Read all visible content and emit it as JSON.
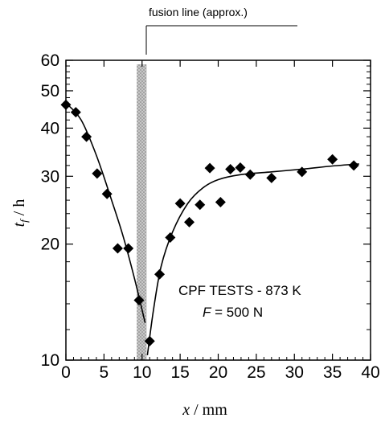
{
  "chart_data": {
    "type": "scatter",
    "title": "",
    "xlabel": {
      "var": "x",
      "unit": " / mm"
    },
    "ylabel": {
      "var": "t",
      "sub": "f",
      "unit": " / h"
    },
    "xlim": [
      0,
      40
    ],
    "ylim": [
      10,
      60
    ],
    "yscale": "log",
    "grid": false,
    "xticks": [
      0,
      5,
      10,
      15,
      20,
      25,
      30,
      35,
      40
    ],
    "xtick_labels": [
      "0",
      "5",
      "10",
      "15",
      "20",
      "25",
      "30",
      "35",
      "40"
    ],
    "yticks": [
      10,
      20,
      30,
      40,
      50,
      60
    ],
    "ytick_labels": [
      "10",
      "20",
      "30",
      "40",
      "50",
      "60"
    ],
    "fusion_line": {
      "label": "fusion line (approx.)",
      "x_range": [
        9.3,
        10.6
      ]
    },
    "annotation": {
      "line1": "CPF TESTS - 873 K",
      "line2_var": "F",
      "line2_rest": " = 500 N"
    },
    "series": [
      {
        "marker": "diamond",
        "color": "#000000",
        "points": [
          [
            0,
            46.0
          ],
          [
            1.3,
            44.0
          ],
          [
            2.7,
            38.0
          ],
          [
            4.1,
            30.5
          ],
          [
            5.4,
            27.0
          ],
          [
            6.8,
            19.5
          ],
          [
            8.2,
            19.5
          ],
          [
            9.6,
            14.3
          ],
          [
            11.0,
            11.2
          ],
          [
            12.3,
            16.7
          ],
          [
            13.7,
            20.8
          ],
          [
            15.0,
            25.5
          ],
          [
            16.2,
            22.8
          ],
          [
            17.6,
            25.3
          ],
          [
            18.9,
            31.5
          ],
          [
            20.3,
            25.7
          ],
          [
            21.6,
            31.3
          ],
          [
            22.9,
            31.6
          ],
          [
            24.2,
            30.3
          ],
          [
            27.0,
            29.7
          ],
          [
            31.0,
            30.8
          ],
          [
            35.0,
            33.2
          ],
          [
            37.8,
            32.0
          ]
        ]
      }
    ],
    "fit_curves": [
      {
        "segment": "left",
        "points": [
          [
            0,
            46.5
          ],
          [
            2,
            42
          ],
          [
            4,
            34
          ],
          [
            6,
            26
          ],
          [
            7.5,
            21
          ],
          [
            9,
            16.3
          ],
          [
            10.4,
            12.5
          ]
        ]
      },
      {
        "segment": "right",
        "points": [
          [
            10.7,
            10.3
          ],
          [
            11.5,
            13.5
          ],
          [
            12.5,
            17.5
          ],
          [
            14,
            21.5
          ],
          [
            16,
            25.5
          ],
          [
            18,
            28
          ],
          [
            20,
            29.4
          ],
          [
            23,
            30.3
          ],
          [
            27,
            30.8
          ],
          [
            31,
            31.3
          ],
          [
            35,
            31.9
          ],
          [
            38.5,
            32.3
          ]
        ]
      }
    ]
  }
}
